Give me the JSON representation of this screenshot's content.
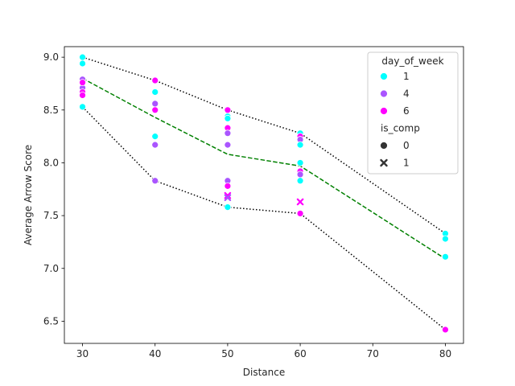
{
  "chart_data": {
    "type": "scatter",
    "title": "",
    "xlabel": "Distance",
    "ylabel": "Average Arrow Score",
    "xlim": [
      27.5,
      82.5
    ],
    "ylim": [
      6.29,
      9.1
    ],
    "xticks": [
      30,
      40,
      50,
      60,
      70,
      80
    ],
    "yticks": [
      6.5,
      7.0,
      7.5,
      8.0,
      8.5,
      9.0
    ],
    "tick_labels": {
      "x": [
        "30",
        "40",
        "50",
        "60",
        "70",
        "80"
      ],
      "y": [
        "6.5",
        "7.0",
        "7.5",
        "8.0",
        "8.5",
        "9.0"
      ]
    },
    "grid": false,
    "legend": {
      "placement": "top-right",
      "hue_title": "day_of_week",
      "hue_entries": [
        {
          "label": "1",
          "color": "#00ffff"
        },
        {
          "label": "4",
          "color": "#aa55ff"
        },
        {
          "label": "6",
          "color": "#ff00ff"
        }
      ],
      "style_title": "is_comp",
      "style_entries": [
        {
          "label": "0",
          "marker": "circle"
        },
        {
          "label": "1",
          "marker": "x"
        }
      ]
    },
    "points": [
      {
        "x": 30,
        "y": 9.0,
        "day_of_week": "1",
        "is_comp": "0"
      },
      {
        "x": 30,
        "y": 8.94,
        "day_of_week": "1",
        "is_comp": "0"
      },
      {
        "x": 30,
        "y": 8.53,
        "day_of_week": "1",
        "is_comp": "0"
      },
      {
        "x": 30,
        "y": 8.79,
        "day_of_week": "4",
        "is_comp": "0"
      },
      {
        "x": 30,
        "y": 8.71,
        "day_of_week": "4",
        "is_comp": "0"
      },
      {
        "x": 30,
        "y": 8.67,
        "day_of_week": "6",
        "is_comp": "0"
      },
      {
        "x": 30,
        "y": 8.64,
        "day_of_week": "6",
        "is_comp": "0"
      },
      {
        "x": 30,
        "y": 8.76,
        "day_of_week": "6",
        "is_comp": "0"
      },
      {
        "x": 40,
        "y": 8.78,
        "day_of_week": "6",
        "is_comp": "0"
      },
      {
        "x": 40,
        "y": 8.67,
        "day_of_week": "1",
        "is_comp": "0"
      },
      {
        "x": 40,
        "y": 8.56,
        "day_of_week": "4",
        "is_comp": "0"
      },
      {
        "x": 40,
        "y": 8.5,
        "day_of_week": "6",
        "is_comp": "0"
      },
      {
        "x": 40,
        "y": 8.25,
        "day_of_week": "1",
        "is_comp": "0"
      },
      {
        "x": 40,
        "y": 8.17,
        "day_of_week": "4",
        "is_comp": "0"
      },
      {
        "x": 40,
        "y": 7.83,
        "day_of_week": "4",
        "is_comp": "0"
      },
      {
        "x": 50,
        "y": 8.5,
        "day_of_week": "6",
        "is_comp": "0"
      },
      {
        "x": 50,
        "y": 8.44,
        "day_of_week": "1",
        "is_comp": "0"
      },
      {
        "x": 50,
        "y": 8.42,
        "day_of_week": "1",
        "is_comp": "0"
      },
      {
        "x": 50,
        "y": 8.33,
        "day_of_week": "6",
        "is_comp": "0"
      },
      {
        "x": 50,
        "y": 8.28,
        "day_of_week": "4",
        "is_comp": "0"
      },
      {
        "x": 50,
        "y": 8.17,
        "day_of_week": "4",
        "is_comp": "0"
      },
      {
        "x": 50,
        "y": 7.83,
        "day_of_week": "4",
        "is_comp": "0"
      },
      {
        "x": 50,
        "y": 7.78,
        "day_of_week": "6",
        "is_comp": "0"
      },
      {
        "x": 50,
        "y": 7.69,
        "day_of_week": "6",
        "is_comp": "1"
      },
      {
        "x": 50,
        "y": 7.67,
        "day_of_week": "4",
        "is_comp": "1"
      },
      {
        "x": 50,
        "y": 7.58,
        "day_of_week": "1",
        "is_comp": "0"
      },
      {
        "x": 60,
        "y": 8.28,
        "day_of_week": "1",
        "is_comp": "0"
      },
      {
        "x": 60,
        "y": 8.25,
        "day_of_week": "6",
        "is_comp": "0"
      },
      {
        "x": 60,
        "y": 8.22,
        "day_of_week": "4",
        "is_comp": "0"
      },
      {
        "x": 60,
        "y": 8.17,
        "day_of_week": "1",
        "is_comp": "0"
      },
      {
        "x": 60,
        "y": 8.0,
        "day_of_week": "1",
        "is_comp": "0"
      },
      {
        "x": 60,
        "y": 7.92,
        "day_of_week": "6",
        "is_comp": "0"
      },
      {
        "x": 60,
        "y": 7.89,
        "day_of_week": "4",
        "is_comp": "0"
      },
      {
        "x": 60,
        "y": 7.83,
        "day_of_week": "1",
        "is_comp": "0"
      },
      {
        "x": 60,
        "y": 7.63,
        "day_of_week": "6",
        "is_comp": "1"
      },
      {
        "x": 60,
        "y": 7.52,
        "day_of_week": "6",
        "is_comp": "0"
      },
      {
        "x": 80,
        "y": 7.33,
        "day_of_week": "1",
        "is_comp": "0"
      },
      {
        "x": 80,
        "y": 7.28,
        "day_of_week": "1",
        "is_comp": "0"
      },
      {
        "x": 80,
        "y": 7.11,
        "day_of_week": "1",
        "is_comp": "0"
      },
      {
        "x": 80,
        "y": 6.42,
        "day_of_week": "6",
        "is_comp": "0"
      }
    ],
    "lines": [
      {
        "style": "dashed",
        "color": "#008000",
        "x": [
          30,
          40,
          50,
          60,
          80
        ],
        "y": [
          8.8,
          8.43,
          8.08,
          7.97,
          7.09
        ]
      },
      {
        "style": "dotted",
        "color": "#000000",
        "x": [
          30,
          40,
          50,
          60,
          80
        ],
        "y": [
          9.0,
          8.78,
          8.5,
          8.28,
          7.33
        ]
      },
      {
        "style": "dotted",
        "color": "#000000",
        "x": [
          30,
          40,
          50,
          60,
          80
        ],
        "y": [
          8.53,
          7.83,
          7.58,
          7.52,
          6.42
        ]
      }
    ]
  }
}
